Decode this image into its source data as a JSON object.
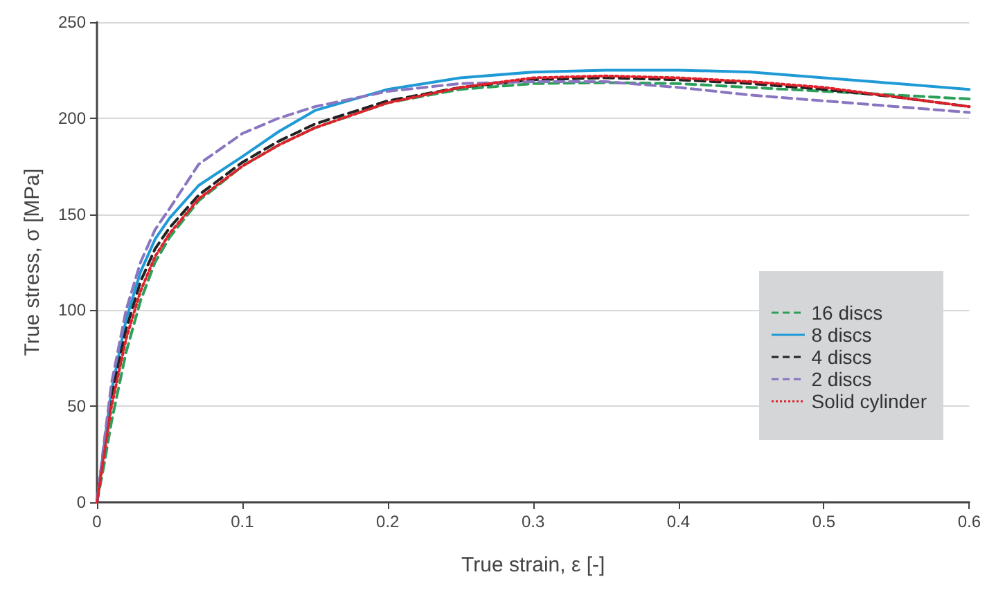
{
  "chart_data": {
    "type": "line",
    "xlabel": "True strain, ε [-]",
    "ylabel": "True stress, σ [MPa]",
    "x": [
      0,
      0.005,
      0.01,
      0.02,
      0.03,
      0.04,
      0.05,
      0.07,
      0.1,
      0.125,
      0.15,
      0.2,
      0.25,
      0.3,
      0.35,
      0.4,
      0.45,
      0.5,
      0.55,
      0.6
    ],
    "series": [
      {
        "name": "16 discs",
        "color": "#2ca05a",
        "line_style": "dashed",
        "values": [
          0,
          20,
          42,
          78,
          105,
          125,
          138,
          157,
          175,
          186,
          195,
          208,
          215,
          218,
          218.5,
          218,
          216,
          214,
          212,
          210
        ]
      },
      {
        "name": "8 discs",
        "color": "#1f9ad6",
        "line_style": "solid",
        "values": [
          0,
          30,
          58,
          95,
          120,
          137,
          148,
          165,
          180,
          193,
          204,
          215,
          221,
          224,
          225,
          225,
          224,
          221,
          218,
          215
        ]
      },
      {
        "name": "4 discs",
        "color": "#222222",
        "line_style": "dashed",
        "values": [
          0,
          28,
          55,
          90,
          115,
          132,
          143,
          160,
          177,
          188,
          197,
          209,
          216,
          220,
          221,
          220,
          218,
          215,
          211,
          206
        ]
      },
      {
        "name": "2 discs",
        "color": "#8a75c0",
        "line_style": "dashed",
        "values": [
          0,
          32,
          62,
          100,
          125,
          142,
          153,
          176,
          192,
          200,
          206,
          214,
          218,
          219,
          219,
          216,
          212,
          209,
          206,
          203
        ]
      },
      {
        "name": "Solid cylinder",
        "color": "#e0202a",
        "line_style": "dotted",
        "values": [
          0,
          25,
          50,
          85,
          110,
          128,
          140,
          158,
          175,
          186,
          195,
          208,
          216,
          221,
          222,
          221,
          219,
          216,
          211,
          206
        ]
      }
    ],
    "xlim": [
      0,
      0.6
    ],
    "xticks": [
      0,
      0.1,
      0.2,
      0.3,
      0.4,
      0.5,
      0.6
    ],
    "ylim": [
      0,
      250
    ],
    "yticks": [
      0,
      50,
      100,
      150,
      200,
      250
    ],
    "grid": "y",
    "legend": "bottom right",
    "marker": "none"
  }
}
